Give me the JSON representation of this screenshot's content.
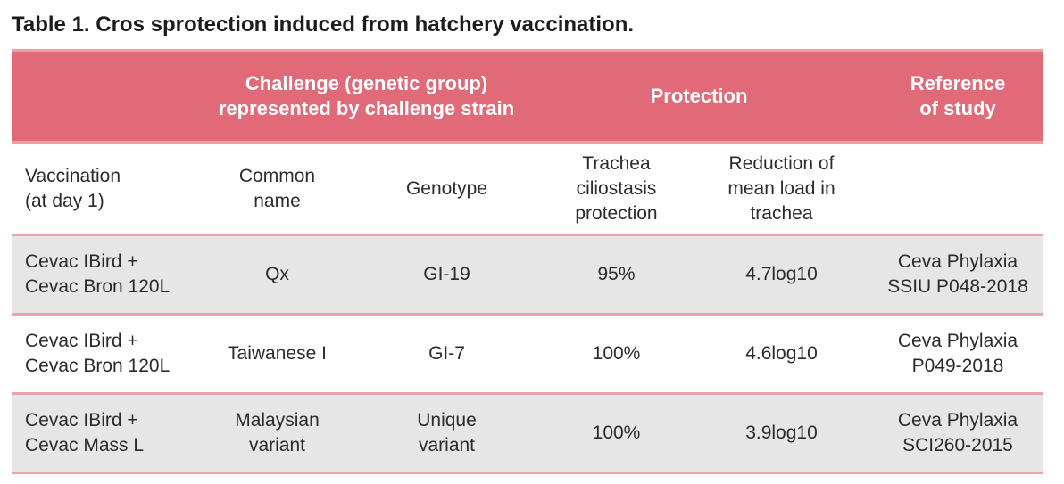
{
  "title": "Table 1. Cros sprotection induced from hatchery vaccination.",
  "colors": {
    "header_bg": "#e06a78",
    "header_stripe": "#ef9ea6",
    "row_divider": "#eba5a8",
    "shaded_row": "#e6e6e6",
    "header_text": "#ffffff"
  },
  "header": {
    "challenge": "Challenge (genetic group)\nrepresented by challenge strain",
    "protection": "Protection",
    "reference": "Reference\nof study"
  },
  "subheader": {
    "vaccination": "Vaccination\n(at day 1)",
    "common_name": "Common\nname",
    "genotype": "Genotype",
    "ciliostasis": "Trachea\nciliostasis\nprotection",
    "reduction": "Reduction of\nmean load in\ntrachea",
    "reference": ""
  },
  "rows": [
    {
      "vaccination": "Cevac IBird +\nCevac Bron 120L",
      "common_name": "Qx",
      "genotype": "GI-19",
      "ciliostasis": "95%",
      "reduction": "4.7log10",
      "reference": "Ceva Phylaxia\nSSIU P048-2018"
    },
    {
      "vaccination": "Cevac IBird +\nCevac Bron 120L",
      "common_name": "Taiwanese I",
      "genotype": "GI-7",
      "ciliostasis": "100%",
      "reduction": "4.6log10",
      "reference": "Ceva Phylaxia\nP049-2018"
    },
    {
      "vaccination": "Cevac IBird +\nCevac Mass L",
      "common_name": "Malaysian\nvariant",
      "genotype": "Unique\nvariant",
      "ciliostasis": "100%",
      "reduction": "3.9log10",
      "reference": "Ceva Phylaxia\nSCI260-2015"
    }
  ]
}
